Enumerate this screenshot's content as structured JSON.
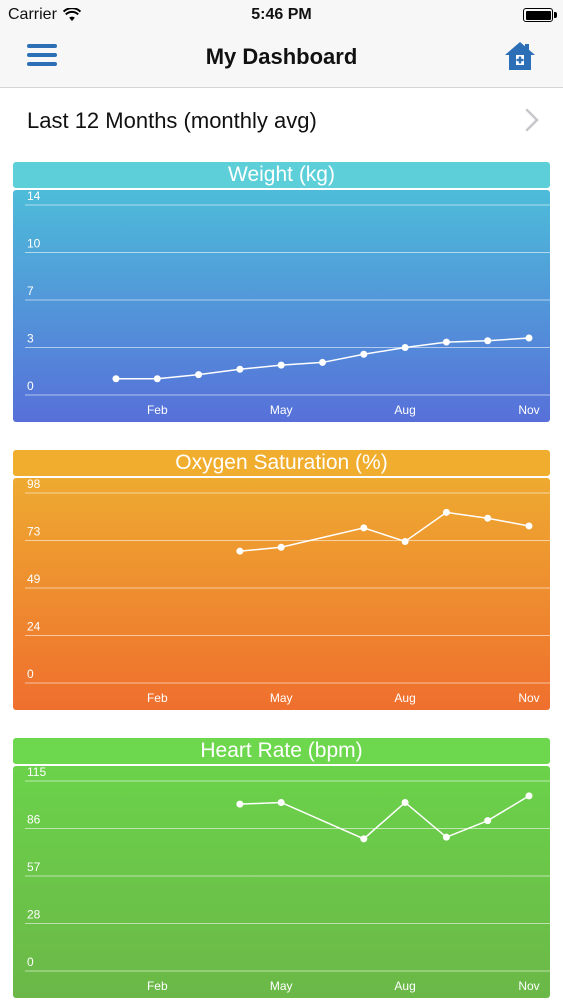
{
  "status_bar": {
    "carrier": "Carrier",
    "time": "5:46 PM"
  },
  "nav": {
    "title": "My Dashboard",
    "menu_icon": "hamburger-menu-icon",
    "home_icon": "home-icon"
  },
  "period": {
    "label": "Last 12 Months (monthly avg)"
  },
  "colors": {
    "accent": "#2d6fb6",
    "weight_title": "#5ccfd9",
    "oxygen_title": "#f0ad2e",
    "heart_title": "#6dd84d"
  },
  "chart_data": [
    {
      "type": "line",
      "title": "Weight (kg)",
      "y_ticks": [
        "14",
        "10",
        "7",
        "3",
        "0"
      ],
      "ylim": [
        0,
        14
      ],
      "x_ticks": [
        "Feb",
        "May",
        "Aug",
        "Nov"
      ],
      "x": [
        "Jan",
        "Feb",
        "Mar",
        "Apr",
        "May",
        "Jun",
        "Jul",
        "Aug",
        "Sep",
        "Oct",
        "Nov"
      ],
      "values": [
        1.2,
        1.2,
        1.5,
        1.9,
        2.2,
        2.4,
        3.0,
        3.5,
        3.9,
        4.0,
        4.2
      ]
    },
    {
      "type": "line",
      "title": "Oxygen Saturation (%)",
      "y_ticks": [
        "98",
        "73",
        "49",
        "24",
        "0"
      ],
      "ylim": [
        0,
        98
      ],
      "x_ticks": [
        "Feb",
        "May",
        "Aug",
        "Nov"
      ],
      "x": [
        "Apr",
        "May",
        "Jul",
        "Aug",
        "Sep",
        "Oct",
        "Nov"
      ],
      "values": [
        68,
        70,
        80,
        73,
        88,
        85,
        81
      ]
    },
    {
      "type": "line",
      "title": "Heart Rate (bpm)",
      "y_ticks": [
        "115",
        "86",
        "57",
        "28",
        "0"
      ],
      "ylim": [
        0,
        115
      ],
      "x_ticks": [
        "Feb",
        "May",
        "Aug",
        "Nov"
      ],
      "x": [
        "Apr",
        "May",
        "Jul",
        "Aug",
        "Sep",
        "Oct",
        "Nov"
      ],
      "values": [
        101,
        102,
        80,
        102,
        81,
        91,
        106
      ]
    }
  ]
}
